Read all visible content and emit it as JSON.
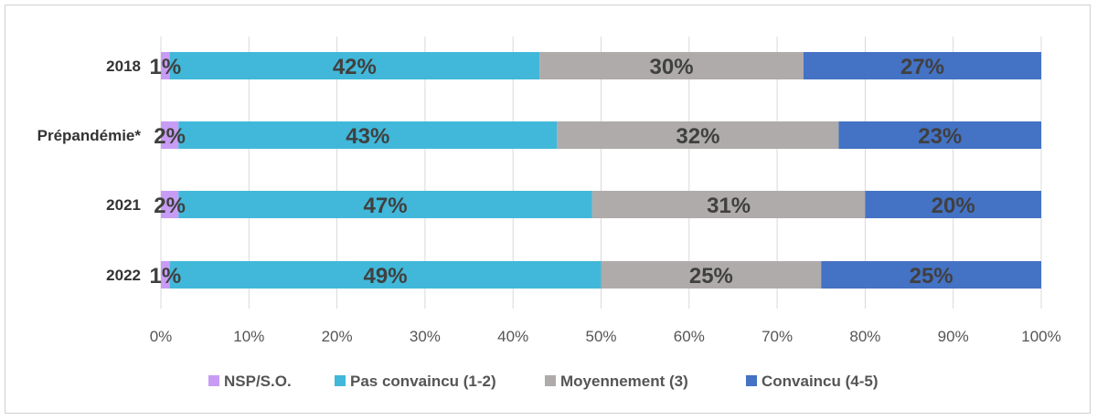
{
  "chart_data": {
    "type": "bar",
    "orientation": "horizontal",
    "stacked": true,
    "categories": [
      "2018",
      "Prépandémie*",
      "2021",
      "2022"
    ],
    "series": [
      {
        "name": "NSP/S.O.",
        "color": "#c89cf4",
        "values": [
          1,
          2,
          2,
          1
        ],
        "labels": [
          "1%",
          "2%",
          "2%",
          "1%"
        ]
      },
      {
        "name": "Pas convaincu (1-2)",
        "color": "#41b8d9",
        "values": [
          42,
          43,
          47,
          49
        ],
        "labels": [
          "42%",
          "43%",
          "47%",
          "49%"
        ]
      },
      {
        "name": "Moyennement (3)",
        "color": "#afabab",
        "values": [
          30,
          32,
          31,
          25
        ],
        "labels": [
          "30%",
          "32%",
          "31%",
          "25%"
        ]
      },
      {
        "name": "Convaincu (4-5)",
        "color": "#4472c4",
        "values": [
          27,
          23,
          20,
          25
        ],
        "labels": [
          "27%",
          "23%",
          "20%",
          "25%"
        ]
      }
    ],
    "xlim": [
      0,
      100
    ],
    "xticks": [
      "0%",
      "10%",
      "20%",
      "30%",
      "40%",
      "50%",
      "60%",
      "70%",
      "80%",
      "90%",
      "100%"
    ],
    "grid": true,
    "legend_position": "bottom",
    "title": "",
    "xlabel": "",
    "ylabel": ""
  }
}
